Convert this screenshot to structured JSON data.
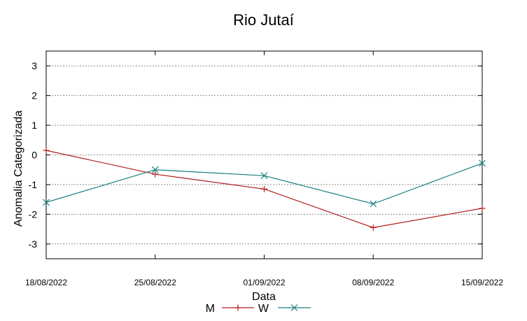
{
  "chart_data": {
    "type": "line",
    "title": "Rio Jutaí",
    "xlabel": "Data",
    "ylabel": "Anomalia Categorizada",
    "categories": [
      "18/08/2022",
      "25/08/2022",
      "01/09/2022",
      "08/09/2022",
      "15/09/2022"
    ],
    "ylim": [
      -3.5,
      3.5
    ],
    "yticks": [
      3,
      2,
      1,
      0,
      -1,
      -2,
      -3
    ],
    "ytick_labels": [
      "3",
      "2",
      "1",
      "0",
      "-1",
      "-2",
      "-3"
    ],
    "grid": true,
    "legend_position": "bottom",
    "series": [
      {
        "name": "M",
        "values": [
          0.15,
          -0.65,
          -1.15,
          -2.45,
          -1.8
        ],
        "color": "#b01c1c",
        "marker": "+"
      },
      {
        "name": "W",
        "values": [
          -1.6,
          -0.5,
          -0.7,
          -1.65,
          -0.28
        ],
        "color": "#1a7f7f",
        "marker": "x"
      }
    ]
  }
}
